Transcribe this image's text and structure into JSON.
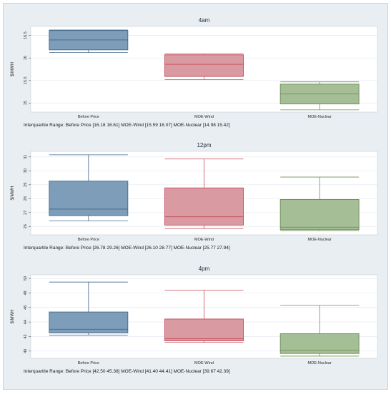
{
  "colors": {
    "box_fills": [
      "#7d9db8",
      "#d99aa2",
      "#a6be96"
    ],
    "box_strokes": [
      "#41698c",
      "#c44c5b",
      "#6b8f55"
    ],
    "plot_bg": "#ffffff",
    "grid": "#e4e9ee",
    "frame_bg": "#e8eef2"
  },
  "chart_data": [
    {
      "type": "box",
      "title": "4am",
      "ylabel": "$/MWH",
      "categories": [
        "Before Price",
        "MOE-Wind",
        "MOE-Nuclear"
      ],
      "ylim": [
        14.8,
        16.7
      ],
      "yticks": [
        15,
        15.5,
        16,
        16.5
      ],
      "yticklabels": [
        "15",
        "15.5",
        "16",
        "16.5"
      ],
      "boxes": [
        {
          "min": 16.12,
          "q1": 16.18,
          "median": 16.4,
          "q3": 16.61,
          "max": 16.62
        },
        {
          "min": 15.52,
          "q1": 15.59,
          "median": 15.86,
          "q3": 16.07,
          "max": 16.09
        },
        {
          "min": 14.85,
          "q1": 14.98,
          "median": 15.2,
          "q3": 15.42,
          "max": 15.47
        }
      ],
      "grid": true,
      "note": "Interquartile Range: Before Price [16.18 16.61] MOE-Wind [15.59 16.07] MOE-Nuclear [14.98 15.42]"
    },
    {
      "type": "box",
      "title": "12pm",
      "ylabel": "$/MWH",
      "categories": [
        "Before Price",
        "MOE-Wind",
        "MOE-Nuclear"
      ],
      "ylim": [
        25.4,
        31.4
      ],
      "yticks": [
        26,
        27,
        28,
        29,
        30,
        31
      ],
      "yticklabels": [
        "26",
        "27",
        "28",
        "29",
        "30",
        "31"
      ],
      "boxes": [
        {
          "min": 26.4,
          "q1": 26.78,
          "median": 27.25,
          "q3": 29.26,
          "max": 31.15
        },
        {
          "min": 25.85,
          "q1": 26.1,
          "median": 26.7,
          "q3": 28.77,
          "max": 30.85
        },
        {
          "min": 25.7,
          "q1": 25.77,
          "median": 25.95,
          "q3": 27.94,
          "max": 29.55
        }
      ],
      "grid": true,
      "note": "Interquartile Range: Before Price [26.78 29.26] MOE-Wind [26.10 28.77] MOE-Nuclear [25.77 27.94]"
    },
    {
      "type": "box",
      "title": "4pm",
      "ylabel": "$/MWH",
      "categories": [
        "Before Price",
        "MOE-Wind",
        "MOE-Nuclear"
      ],
      "ylim": [
        39,
        50.5
      ],
      "yticks": [
        40,
        42,
        44,
        46,
        48,
        50
      ],
      "yticklabels": [
        "40",
        "42",
        "44",
        "46",
        "48",
        "50"
      ],
      "boxes": [
        {
          "min": 42.2,
          "q1": 42.5,
          "median": 43.0,
          "q3": 45.38,
          "max": 49.5
        },
        {
          "min": 41.2,
          "q1": 41.4,
          "median": 41.7,
          "q3": 44.41,
          "max": 48.4
        },
        {
          "min": 39.3,
          "q1": 39.67,
          "median": 40.1,
          "q3": 42.39,
          "max": 46.3
        }
      ],
      "grid": true,
      "note": "Interquartile Range: Before Price [42.50 45.38] MOE-Wind [41.40 44.41] MOE-Nuclear [39.67 42.39]"
    }
  ]
}
